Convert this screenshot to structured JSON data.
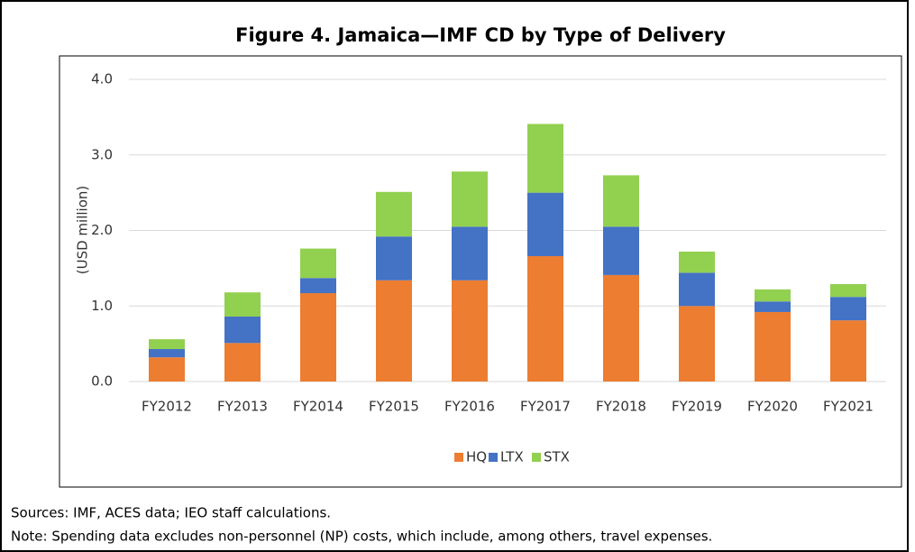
{
  "chart_data": {
    "type": "stacked-bar",
    "title": "Figure 4. Jamaica—IMF CD by Type of Delivery",
    "y_label": "(USD million)",
    "categories": [
      "FY2012",
      "FY2013",
      "FY2014",
      "FY2015",
      "FY2016",
      "FY2017",
      "FY2018",
      "FY2019",
      "FY2020",
      "FY2021"
    ],
    "series": [
      {
        "name": "HQ",
        "color": "#ed7d31",
        "values": [
          0.32,
          0.51,
          1.17,
          1.34,
          1.34,
          1.66,
          1.41,
          1.0,
          0.92,
          0.81
        ]
      },
      {
        "name": "LTX",
        "color": "#4472c4",
        "values": [
          0.11,
          0.35,
          0.2,
          0.58,
          0.71,
          0.84,
          0.64,
          0.44,
          0.14,
          0.31
        ]
      },
      {
        "name": "STX",
        "color": "#92d050",
        "values": [
          0.13,
          0.32,
          0.39,
          0.59,
          0.73,
          0.91,
          0.68,
          0.28,
          0.16,
          0.17
        ]
      }
    ],
    "ylim": [
      0,
      4
    ],
    "yticks": [
      {
        "value": 0,
        "label": "0.0"
      },
      {
        "value": 1,
        "label": "1.0"
      },
      {
        "value": 2,
        "label": "2.0"
      },
      {
        "value": 3,
        "label": "3.0"
      },
      {
        "value": 4,
        "label": "4.0"
      }
    ],
    "grid": true,
    "legend": "bottom",
    "sources": "Sources: IMF, ACES data; IEO staff calculations.",
    "note": "Note: Spending data excludes non-personnel (NP) costs, which include, among others, travel expenses."
  }
}
